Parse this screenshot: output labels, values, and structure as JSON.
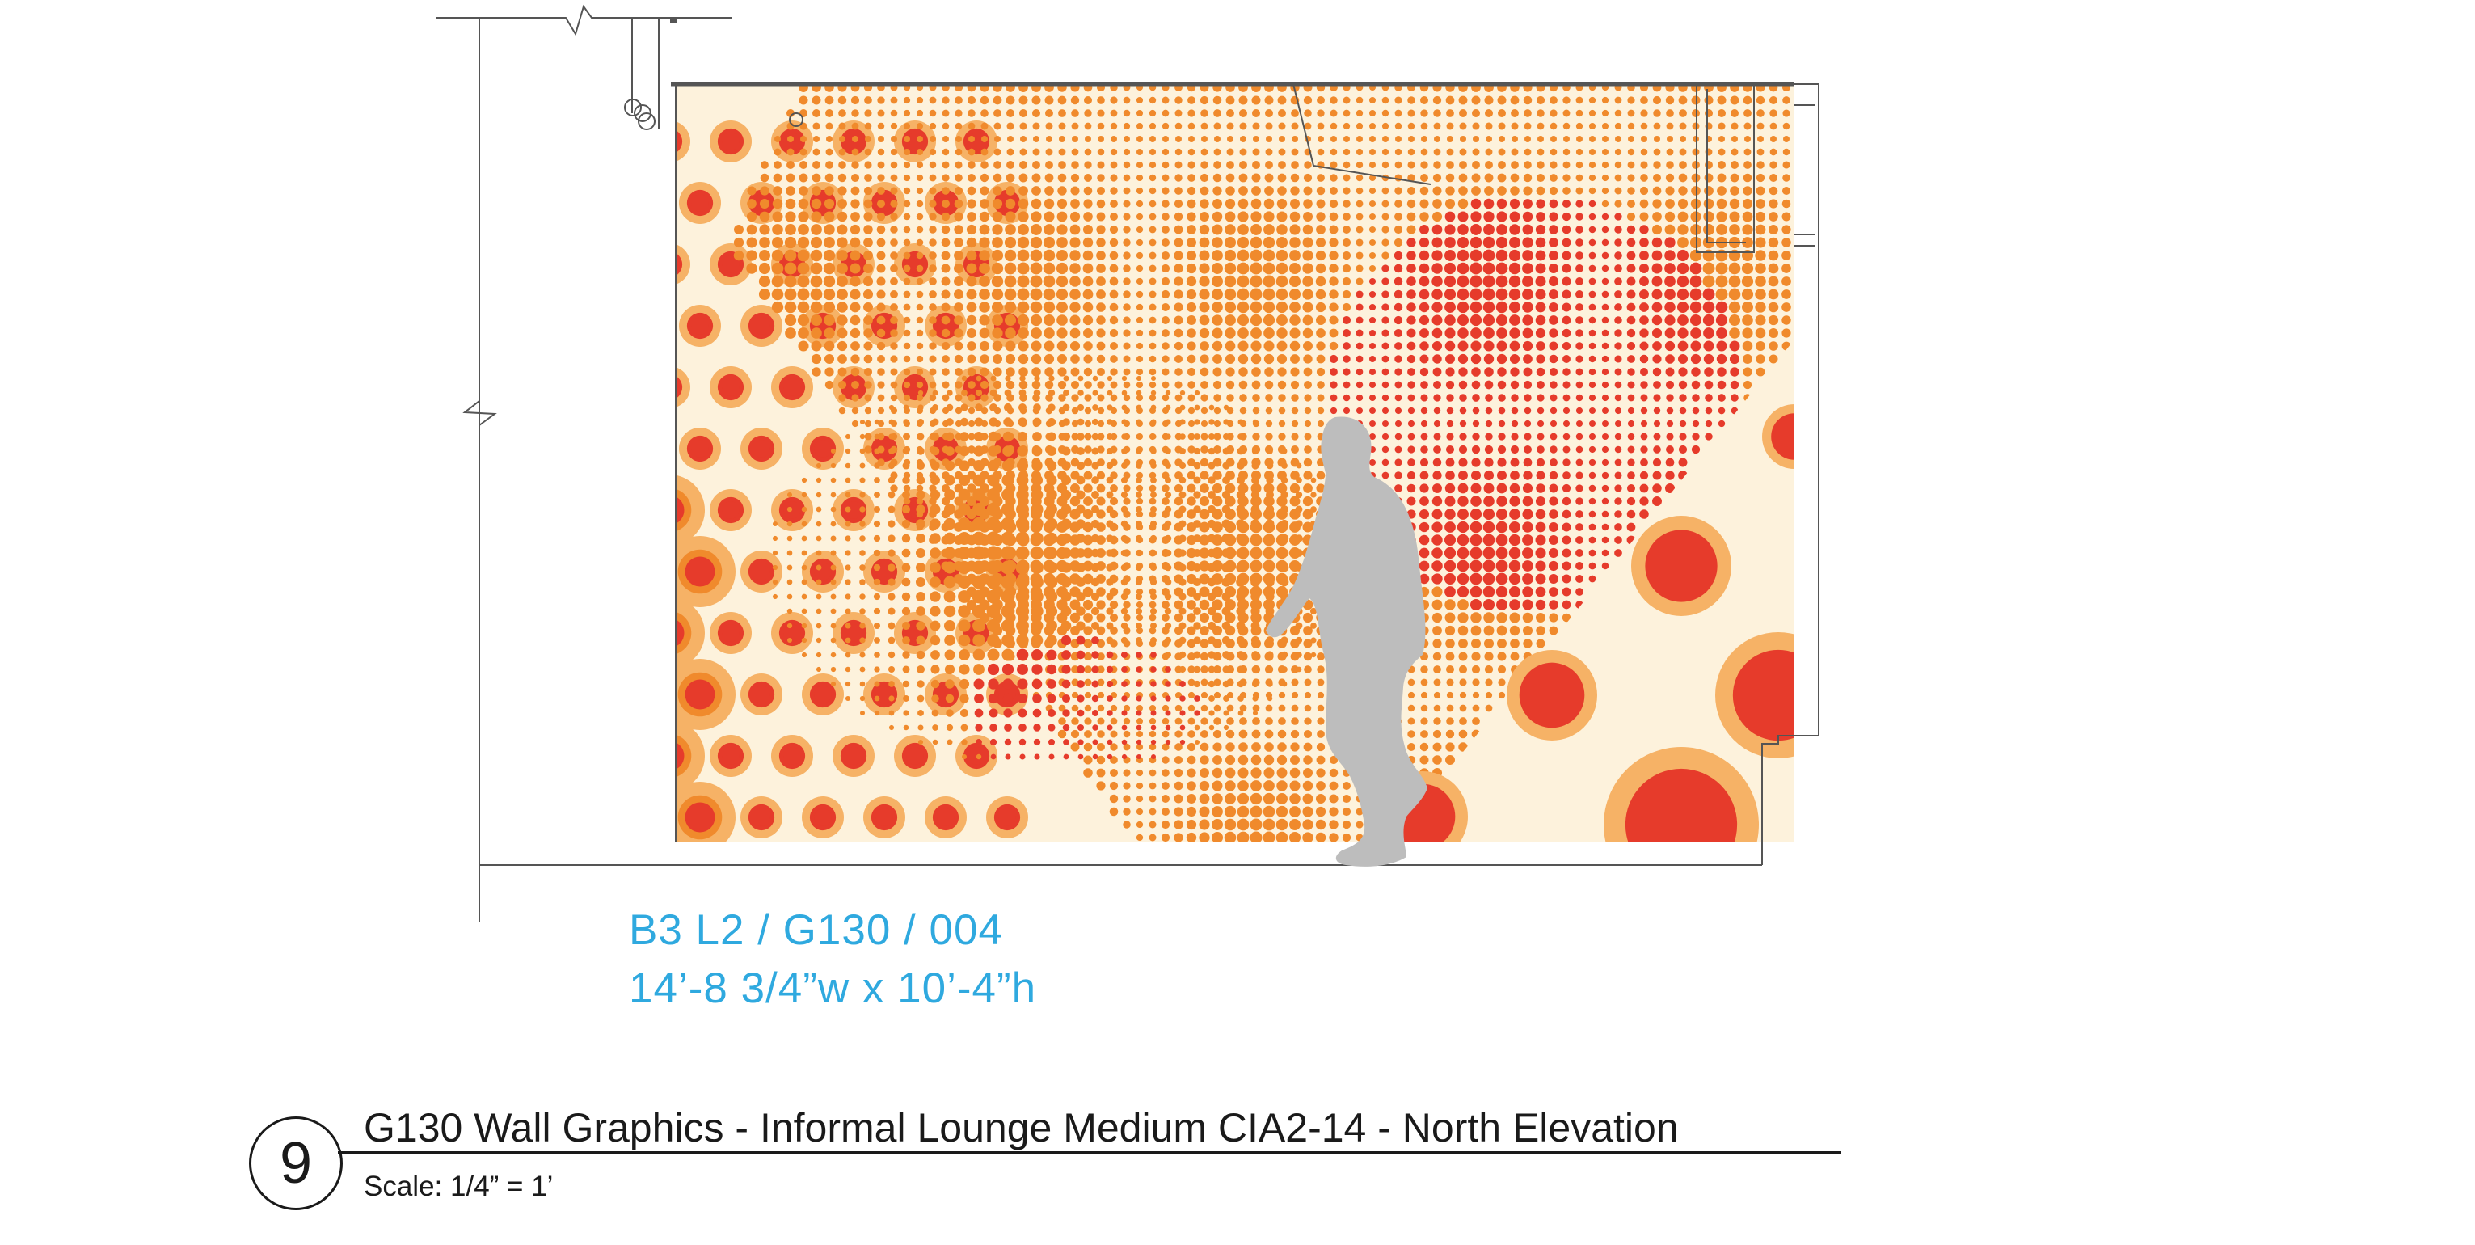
{
  "drawing": {
    "code": "B3 L2 / G130 / 004",
    "dimensions": "14’-8 3/4”w x 10’-4”h",
    "number": "9",
    "title": "G130 Wall Graphics - Informal Lounge Medium CIA2-14 - North Elevation",
    "scale": "Scale: 1/4” = 1’"
  },
  "colors": {
    "background": "#ffffff",
    "cream": "#fdf2dc",
    "orange": "#f08a2c",
    "light_orange": "#f6b266",
    "red": "#e63b2b",
    "figure_gray": "#bdbdbd",
    "line": "#444444",
    "label_blue": "#2fa9df"
  },
  "icons": [
    "person-silhouette-icon",
    "break-line-icon",
    "light-switch-icon"
  ]
}
